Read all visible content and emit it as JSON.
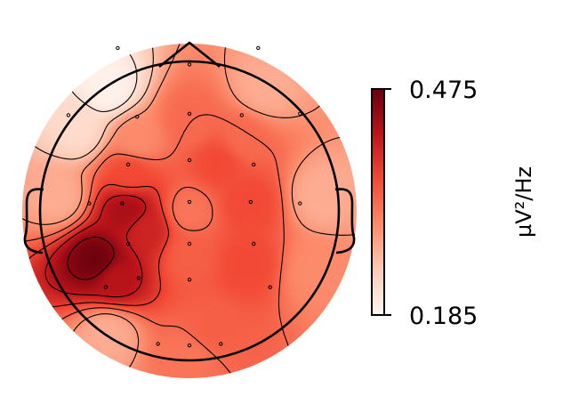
{
  "chart_data": {
    "type": "heatmap",
    "subtype": "eeg-topomap",
    "title": "",
    "colormap": [
      "#fff5f0",
      "#fdcab5",
      "#fc8a6a",
      "#f24a35",
      "#bc141a",
      "#67000d"
    ],
    "colorbar": {
      "min": 0.185,
      "max": 0.475,
      "unit": "µV²/Hz",
      "ticks": [
        {
          "value": 0.475,
          "label": "0.475"
        },
        {
          "value": 0.185,
          "label": "0.185"
        }
      ]
    },
    "sources": [
      {
        "x": 0.0,
        "y": 0.0,
        "value": 0.32
      },
      {
        "x": 0.0,
        "y": 0.6,
        "value": 0.33
      },
      {
        "x": -0.35,
        "y": 0.48,
        "value": 0.3
      },
      {
        "x": 0.35,
        "y": 0.48,
        "value": 0.33
      },
      {
        "x": -0.4,
        "y": 0.25,
        "value": 0.36
      },
      {
        "x": 0.2,
        "y": 0.33,
        "value": 0.36
      },
      {
        "x": -0.42,
        "y": 0.0,
        "value": 0.43
      },
      {
        "x": -0.62,
        "y": -0.33,
        "value": 0.47
      },
      {
        "x": -0.5,
        "y": -0.45,
        "value": 0.42
      },
      {
        "x": -0.3,
        "y": -0.12,
        "value": 0.4
      },
      {
        "x": 0.4,
        "y": 0.05,
        "value": 0.36
      },
      {
        "x": 0.38,
        "y": -0.35,
        "value": 0.36
      },
      {
        "x": 0.0,
        "y": -0.3,
        "value": 0.34
      },
      {
        "x": 0.15,
        "y": -0.8,
        "value": 0.34
      },
      {
        "x": -0.55,
        "y": -0.82,
        "value": 0.27
      },
      {
        "x": -0.88,
        "y": 0.1,
        "value": 0.27
      },
      {
        "x": -0.75,
        "y": 0.55,
        "value": 0.22
      },
      {
        "x": -0.55,
        "y": 0.82,
        "value": 0.19
      },
      {
        "x": 0.5,
        "y": 0.82,
        "value": 0.27
      },
      {
        "x": 0.88,
        "y": 0.1,
        "value": 0.27
      },
      {
        "x": 0.85,
        "y": -0.4,
        "value": 0.3
      },
      {
        "x": 0.0,
        "y": -0.97,
        "value": 0.32
      }
    ],
    "channels": [
      {
        "x": -0.48,
        "y": 1.09
      },
      {
        "x": 0.46,
        "y": 1.09
      },
      {
        "x": 0.0,
        "y": 0.98
      },
      {
        "x": -0.81,
        "y": 0.64
      },
      {
        "x": -0.35,
        "y": 0.63
      },
      {
        "x": 0.0,
        "y": 0.65
      },
      {
        "x": 0.35,
        "y": 0.64
      },
      {
        "x": 0.74,
        "y": 0.65
      },
      {
        "x": -0.41,
        "y": 0.31
      },
      {
        "x": 0.0,
        "y": 0.34
      },
      {
        "x": 0.43,
        "y": 0.31
      },
      {
        "x": -0.67,
        "y": 0.05
      },
      {
        "x": -0.45,
        "y": 0.05
      },
      {
        "x": 0.0,
        "y": 0.06
      },
      {
        "x": 0.41,
        "y": 0.06
      },
      {
        "x": 0.74,
        "y": 0.05
      },
      {
        "x": -0.41,
        "y": -0.22
      },
      {
        "x": 0.0,
        "y": -0.22
      },
      {
        "x": 0.43,
        "y": -0.22
      },
      {
        "x": -0.56,
        "y": -0.51
      },
      {
        "x": -0.34,
        "y": -0.45
      },
      {
        "x": 0.0,
        "y": -0.46
      },
      {
        "x": 0.54,
        "y": -0.51
      },
      {
        "x": -0.21,
        "y": -0.89
      },
      {
        "x": 0.0,
        "y": -0.9
      },
      {
        "x": 0.21,
        "y": -0.89
      }
    ],
    "contour_levels": [
      0.21,
      0.25,
      0.29,
      0.33,
      0.37,
      0.41,
      0.45
    ],
    "contour_color": "#000000",
    "head_outline_color": "#000000"
  }
}
